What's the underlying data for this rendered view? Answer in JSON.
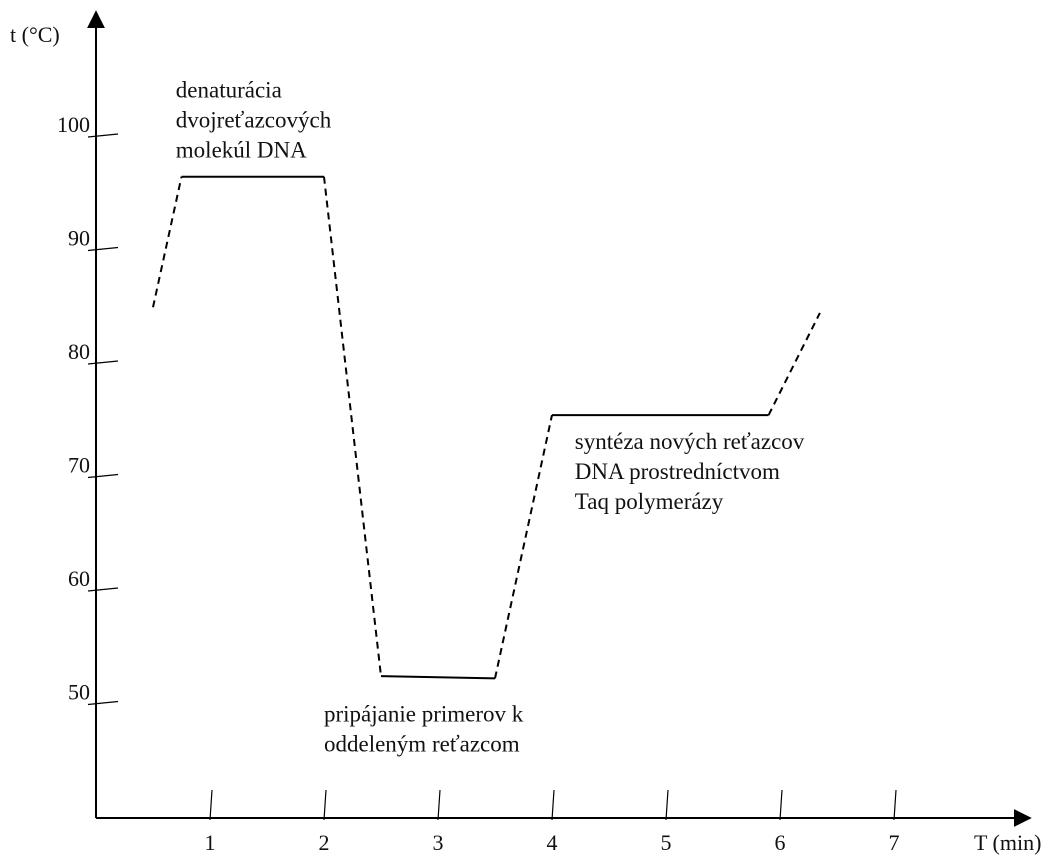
{
  "chart_data": {
    "type": "line",
    "ylabel": "t (°C)",
    "xlabel": "T (min)",
    "xlim": [
      0,
      7.5
    ],
    "ylim": [
      40,
      100
    ],
    "x_ticks": [
      1,
      2,
      3,
      4,
      5,
      6,
      7
    ],
    "y_ticks": [
      50,
      60,
      70,
      80,
      90,
      100
    ],
    "grid": false,
    "series": [
      {
        "points": [
          {
            "x": 0.5,
            "y": 85,
            "style": "dashed"
          },
          {
            "x": 0.75,
            "y": 96.5,
            "style": "dashed"
          },
          {
            "x": 2.0,
            "y": 96.5,
            "style": "solid"
          },
          {
            "x": 2.5,
            "y": 52.5,
            "style": "dashed"
          },
          {
            "x": 3.5,
            "y": 52.3,
            "style": "solid"
          },
          {
            "x": 4.0,
            "y": 75.5,
            "style": "dashed"
          },
          {
            "x": 5.9,
            "y": 75.5,
            "style": "solid"
          },
          {
            "x": 6.35,
            "y": 84.5,
            "style": "dashed"
          }
        ]
      }
    ],
    "annotations": [
      {
        "lines": [
          "denaturácia",
          "dvojreťazcových",
          "molekúl DNA"
        ],
        "x": 0.7,
        "y": 103.5
      },
      {
        "lines": [
          "pripájanie primerov k",
          "oddeleným reťazcom"
        ],
        "x": 2.0,
        "y": 48.5
      },
      {
        "lines": [
          "syntéza nových reťazcov",
          "DNA prostredníctvom",
          "Taq polymerázy"
        ],
        "x": 4.2,
        "y": 72.5
      }
    ]
  }
}
